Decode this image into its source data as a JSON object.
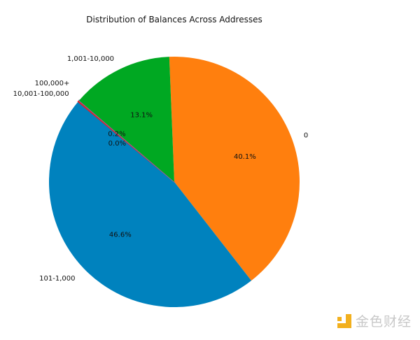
{
  "chart_data": {
    "type": "pie",
    "title": "Distribution of Balances Across Addresses",
    "slices": [
      {
        "label": "0",
        "value": 40.1,
        "pct_label": "40.1%",
        "color": "#ff7f0e"
      },
      {
        "label": "101-1,000",
        "value": 46.6,
        "pct_label": "46.6%",
        "color": "#0082be"
      },
      {
        "label": "10,001-100,000",
        "value": 0.2,
        "pct_label": "0.2%",
        "color": "#d62728"
      },
      {
        "label": "100,000+",
        "value": 0.0,
        "pct_label": "0.0%",
        "color": "#9467bd"
      },
      {
        "label": "1,001-10,000",
        "value": 13.1,
        "pct_label": "13.1%",
        "color": "#00a822"
      }
    ],
    "start_angle_deg_clockwise_from_top": -2.3,
    "direction": "clockwise"
  },
  "watermark": {
    "text": "金色财经"
  }
}
